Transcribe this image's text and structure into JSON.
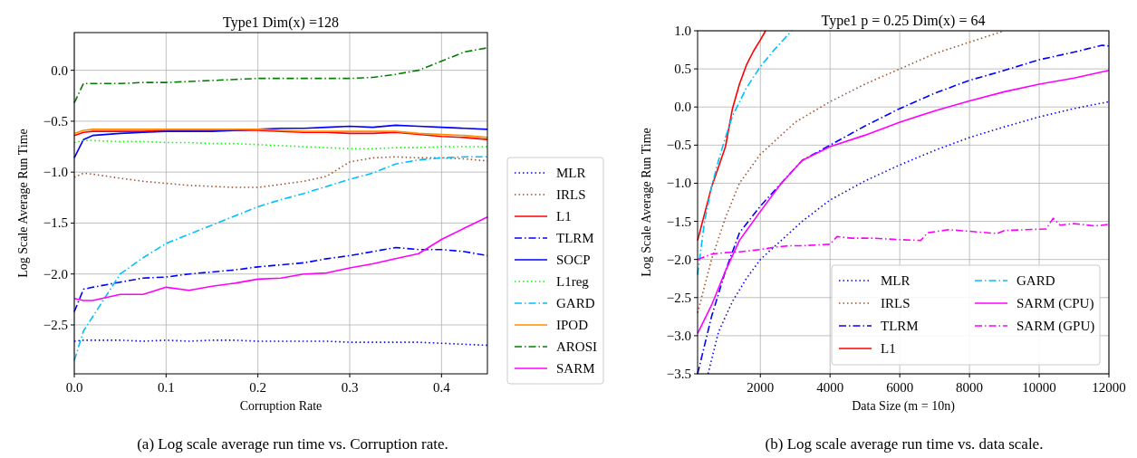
{
  "chart_data": [
    {
      "type": "line",
      "title": "Type1  Dim(x) =128",
      "xlabel": "Corruption Rate",
      "ylabel": "Log Scale Average Run Time",
      "x": [
        0,
        0.01,
        0.02,
        0.05,
        0.075,
        0.1,
        0.125,
        0.15,
        0.175,
        0.2,
        0.225,
        0.25,
        0.275,
        0.3,
        0.325,
        0.35,
        0.375,
        0.4,
        0.425,
        0.45
      ],
      "xlim": [
        0,
        0.45
      ],
      "ylim": [
        -2.98,
        0.37
      ],
      "xticks": [
        {
          "value": 0,
          "label": "0.0"
        },
        {
          "value": 0.1,
          "label": "0.1"
        },
        {
          "value": 0.2,
          "label": "0.2"
        },
        {
          "value": 0.3,
          "label": "0.3"
        },
        {
          "value": 0.4,
          "label": "0.4"
        }
      ],
      "yticks": [
        {
          "value": -2.5,
          "label": "−2.5"
        },
        {
          "value": -2,
          "label": "−2.0"
        },
        {
          "value": -1.5,
          "label": "−1.5"
        },
        {
          "value": -1,
          "label": "−1.0"
        },
        {
          "value": -0.5,
          "label": "−0.5"
        },
        {
          "value": 0,
          "label": "0.0"
        }
      ],
      "grid": true,
      "legend": "right",
      "marker": "none",
      "annotations": [
        "(a) Log scale average run time vs. Corruption rate."
      ],
      "series": [
        {
          "name": "MLR",
          "color": "#0000ff",
          "line_style": "dotted",
          "values": [
            -2.66,
            -2.65,
            -2.65,
            -2.65,
            -2.66,
            -2.65,
            -2.66,
            -2.65,
            -2.65,
            -2.66,
            -2.66,
            -2.66,
            -2.66,
            -2.67,
            -2.67,
            -2.67,
            -2.67,
            -2.68,
            -2.69,
            -2.7
          ]
        },
        {
          "name": "IRLS",
          "color": "#a0522d",
          "line_style": "dotted",
          "values": [
            -1.05,
            -1.01,
            -1.02,
            -1.06,
            -1.09,
            -1.11,
            -1.13,
            -1.14,
            -1.15,
            -1.15,
            -1.12,
            -1.09,
            -1.04,
            -0.9,
            -0.86,
            -0.85,
            -0.86,
            -0.86,
            -0.87,
            -0.89
          ]
        },
        {
          "name": "L1",
          "color": "#ff0000",
          "line_style": "solid",
          "values": [
            -0.64,
            -0.61,
            -0.6,
            -0.6,
            -0.6,
            -0.59,
            -0.59,
            -0.59,
            -0.59,
            -0.59,
            -0.6,
            -0.61,
            -0.61,
            -0.62,
            -0.62,
            -0.61,
            -0.63,
            -0.65,
            -0.66,
            -0.68
          ]
        },
        {
          "name": "TLRM",
          "color": "#0000ff",
          "line_style": "dashdot",
          "values": [
            -2.37,
            -2.15,
            -2.13,
            -2.08,
            -2.04,
            -2.03,
            -2.0,
            -1.98,
            -1.96,
            -1.93,
            -1.91,
            -1.89,
            -1.85,
            -1.82,
            -1.78,
            -1.74,
            -1.76,
            -1.76,
            -1.78,
            -1.82
          ]
        },
        {
          "name": "SOCP",
          "color": "#0000ff",
          "line_style": "solid",
          "values": [
            -0.86,
            -0.68,
            -0.64,
            -0.62,
            -0.61,
            -0.6,
            -0.6,
            -0.6,
            -0.59,
            -0.58,
            -0.57,
            -0.57,
            -0.56,
            -0.55,
            -0.56,
            -0.54,
            -0.55,
            -0.56,
            -0.57,
            -0.58
          ]
        },
        {
          "name": "L1reg",
          "color": "#00ff00",
          "line_style": "dotted",
          "values": [
            -0.71,
            -0.69,
            -0.69,
            -0.7,
            -0.7,
            -0.71,
            -0.71,
            -0.72,
            -0.72,
            -0.73,
            -0.74,
            -0.75,
            -0.76,
            -0.77,
            -0.77,
            -0.76,
            -0.76,
            -0.75,
            -0.75,
            -0.75
          ]
        },
        {
          "name": "GARD",
          "color": "#00bfff",
          "line_style": "dashdot",
          "values": [
            -2.85,
            -2.56,
            -2.42,
            -2.0,
            -1.84,
            -1.7,
            -1.61,
            -1.52,
            -1.43,
            -1.34,
            -1.27,
            -1.21,
            -1.14,
            -1.07,
            -1.01,
            -0.92,
            -0.88,
            -0.86,
            -0.85,
            -0.85
          ]
        },
        {
          "name": "IPOD",
          "color": "#ff8c00",
          "line_style": "solid",
          "values": [
            -0.62,
            -0.59,
            -0.58,
            -0.58,
            -0.58,
            -0.58,
            -0.58,
            -0.58,
            -0.58,
            -0.58,
            -0.59,
            -0.6,
            -0.6,
            -0.6,
            -0.6,
            -0.6,
            -0.62,
            -0.63,
            -0.64,
            -0.66
          ]
        },
        {
          "name": "AROSI",
          "color": "#008000",
          "line_style": "dashdot",
          "values": [
            -0.32,
            -0.13,
            -0.13,
            -0.13,
            -0.12,
            -0.12,
            -0.11,
            -0.1,
            -0.09,
            -0.08,
            -0.08,
            -0.08,
            -0.08,
            -0.08,
            -0.07,
            -0.04,
            0.0,
            0.09,
            0.18,
            0.22
          ]
        },
        {
          "name": "SARM",
          "color": "#ff00ff",
          "line_style": "solid",
          "values": [
            -2.24,
            -2.26,
            -2.26,
            -2.2,
            -2.2,
            -2.13,
            -2.16,
            -2.12,
            -2.09,
            -2.05,
            -2.04,
            -2.0,
            -1.99,
            -1.94,
            -1.9,
            -1.85,
            -1.8,
            -1.66,
            -1.55,
            -1.44
          ]
        }
      ]
    },
    {
      "type": "line",
      "title": "Type1  p = 0.25  Dim(x) = 64",
      "xlabel": "Data Size (m = 10n)",
      "ylabel": "Log Scale Average Run Time",
      "xlim": [
        200,
        12000
      ],
      "ylim": [
        -3.5,
        1.0
      ],
      "xticks": [
        2000,
        4000,
        6000,
        8000,
        10000,
        12000
      ],
      "yticks": [
        {
          "value": -3.5,
          "label": "−3.5"
        },
        {
          "value": -3,
          "label": "−3.0"
        },
        {
          "value": -2.5,
          "label": "−2.5"
        },
        {
          "value": -2,
          "label": "−2.0"
        },
        {
          "value": -1.5,
          "label": "−1.5"
        },
        {
          "value": -1,
          "label": "−1.0"
        },
        {
          "value": -0.5,
          "label": "−0.5"
        },
        {
          "value": 0,
          "label": "0.0"
        },
        {
          "value": 0.5,
          "label": "0.5"
        },
        {
          "value": 1,
          "label": "1.0"
        }
      ],
      "grid": true,
      "legend": "bottom right",
      "marker": "none",
      "annotations": [
        "(b) Log scale average run time vs. data scale."
      ],
      "series": [
        {
          "name": "MLR",
          "color": "#0000ff",
          "line_style": "dotted",
          "x": [
            500,
            800,
            1200,
            1600,
            2000,
            2600,
            3200,
            4000,
            5000,
            6000,
            7000,
            8000,
            9000,
            10000,
            11000,
            12000
          ],
          "values": [
            -3.5,
            -2.95,
            -2.55,
            -2.25,
            -2.0,
            -1.75,
            -1.5,
            -1.22,
            -0.97,
            -0.76,
            -0.57,
            -0.4,
            -0.26,
            -0.13,
            -0.02,
            0.07
          ]
        },
        {
          "name": "IRLS",
          "color": "#a0522d",
          "line_style": "dotted",
          "x": [
            200,
            600,
            1000,
            1400,
            2000,
            3000,
            4000,
            5000,
            6000,
            7000,
            8000,
            9000
          ],
          "values": [
            -2.7,
            -2.0,
            -1.45,
            -1.0,
            -0.62,
            -0.2,
            0.07,
            0.3,
            0.5,
            0.7,
            0.85,
            1.0
          ]
        },
        {
          "name": "TLRM",
          "color": "#0000ff",
          "line_style": "dashdot",
          "x": [
            200,
            600,
            1000,
            1400,
            2000,
            2600,
            3200,
            4000,
            5000,
            6000,
            7000,
            8000,
            9000,
            10000,
            11000,
            11800,
            12000
          ],
          "values": [
            -3.5,
            -2.75,
            -2.15,
            -1.65,
            -1.3,
            -1.0,
            -0.7,
            -0.5,
            -0.25,
            -0.02,
            0.18,
            0.35,
            0.48,
            0.62,
            0.72,
            0.81,
            0.8
          ]
        },
        {
          "name": "L1",
          "color": "#ff0000",
          "line_style": "solid",
          "x": [
            200,
            600,
            1000,
            1200,
            1400,
            1600,
            1800,
            2000,
            2150
          ],
          "values": [
            -1.75,
            -1.05,
            -0.52,
            -0.02,
            0.3,
            0.55,
            0.73,
            0.88,
            1.0
          ]
        },
        {
          "name": "GARD",
          "color": "#00bfff",
          "line_style": "dashdot",
          "x": [
            200,
            400,
            600,
            800,
            1000,
            1200,
            1600,
            2000,
            2400,
            2900
          ],
          "values": [
            -2.2,
            -1.5,
            -1.05,
            -0.7,
            -0.4,
            -0.12,
            0.25,
            0.53,
            0.75,
            1.0
          ]
        },
        {
          "name": "SARM (CPU)",
          "color": "#ff00ff",
          "line_style": "solid",
          "x": [
            200,
            600,
            1000,
            1400,
            2000,
            2600,
            3200,
            4000,
            5000,
            6000,
            7000,
            8000,
            9000,
            10000,
            11000,
            12000
          ],
          "values": [
            -2.97,
            -2.6,
            -2.15,
            -1.75,
            -1.37,
            -1.0,
            -0.7,
            -0.52,
            -0.37,
            -0.2,
            -0.05,
            0.08,
            0.2,
            0.3,
            0.38,
            0.48
          ]
        },
        {
          "name": "SARM (GPU)",
          "color": "#ff00ff",
          "line_style": "dashdot",
          "x": [
            200,
            600,
            1000,
            1400,
            2000,
            2400,
            2800,
            3200,
            4000,
            4200,
            4600,
            5200,
            6000,
            6600,
            6800,
            7400,
            8000,
            8800,
            9000,
            10200,
            10400,
            10600,
            11000,
            11600,
            12000
          ],
          "values": [
            -2.0,
            -1.93,
            -1.91,
            -1.9,
            -1.87,
            -1.84,
            -1.82,
            -1.82,
            -1.8,
            -1.7,
            -1.72,
            -1.72,
            -1.74,
            -1.75,
            -1.65,
            -1.61,
            -1.63,
            -1.66,
            -1.62,
            -1.6,
            -1.46,
            -1.55,
            -1.53,
            -1.56,
            -1.54
          ]
        }
      ]
    }
  ]
}
